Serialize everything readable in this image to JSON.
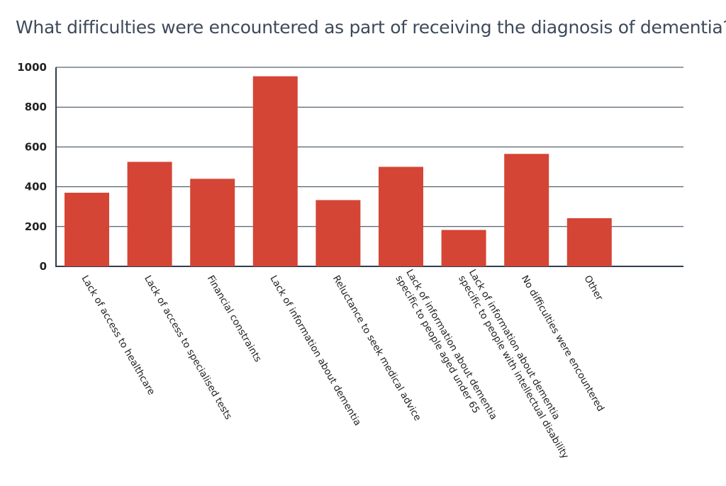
{
  "chart_data": {
    "type": "bar",
    "title": "What difficulties were encountered as part of receiving the diagnosis of dementia?",
    "categories": [
      [
        "Lack of access to healthcare"
      ],
      [
        "Lack of access to specialised tests"
      ],
      [
        "Financial constraints"
      ],
      [
        "Lack of information about dementia"
      ],
      [
        "Reluctance to seek medical advice"
      ],
      [
        "Lack of information about dementia",
        "specific to people aged under 65"
      ],
      [
        "Lack of information about dementia",
        "specific to people with intellectual disability"
      ],
      [
        "No difficulties were encountered"
      ],
      [
        "Other"
      ]
    ],
    "values": [
      370,
      525,
      440,
      955,
      333,
      500,
      183,
      565,
      242
    ],
    "ylim": [
      0,
      1000
    ],
    "yticks": [
      0,
      200,
      400,
      600,
      800,
      1000
    ],
    "grid": true,
    "bar_color": "#d44535",
    "grid_color": "#2f3d4d"
  }
}
